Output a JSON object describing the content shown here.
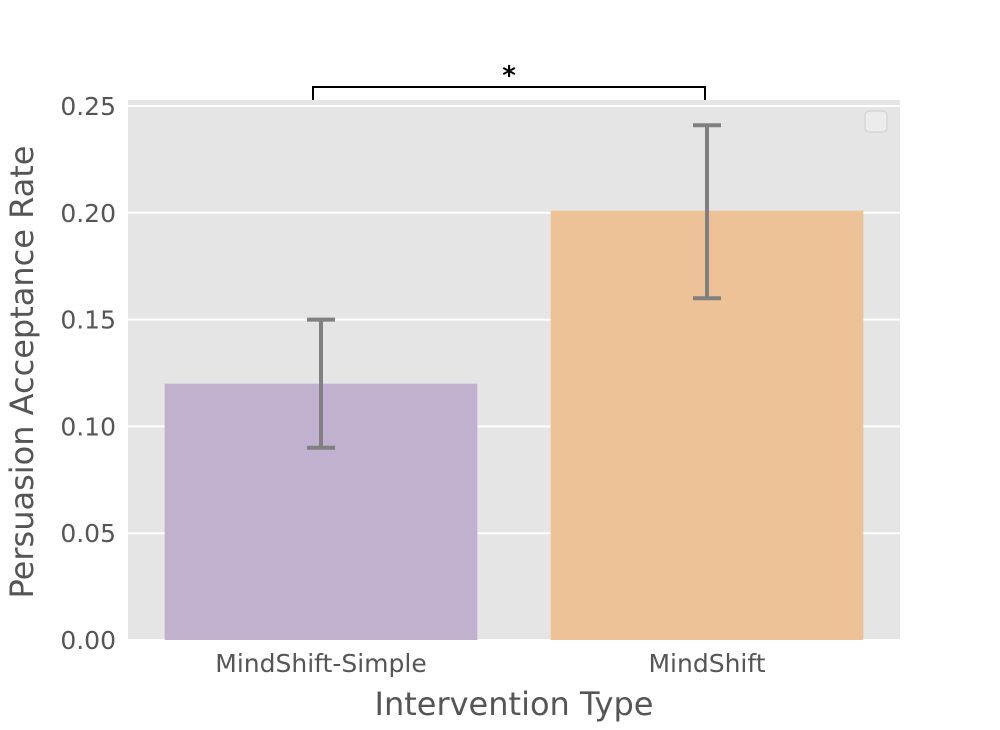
{
  "chart_data": {
    "type": "bar",
    "categories": [
      "MindShift-Simple",
      "MindShift"
    ],
    "values": [
      0.12,
      0.201
    ],
    "error_low": [
      0.09,
      0.16
    ],
    "error_high": [
      0.15,
      0.241
    ],
    "bar_colors": [
      "#c0b2cf",
      "#eec297"
    ],
    "error_color": "#808080",
    "background": "#e5e5e5",
    "grid": true,
    "grid_color": "#ffffff",
    "xlabel": "Intervention Type",
    "ylabel": "Persuasion Acceptance Rate",
    "ylim": [
      0,
      0.25
    ],
    "yticks": [
      "0.00",
      "0.05",
      "0.10",
      "0.15",
      "0.20",
      "0.25"
    ],
    "significance": {
      "between": [
        0,
        1
      ],
      "label": "*"
    },
    "legend": {
      "placement": "top-right",
      "entries": []
    }
  }
}
